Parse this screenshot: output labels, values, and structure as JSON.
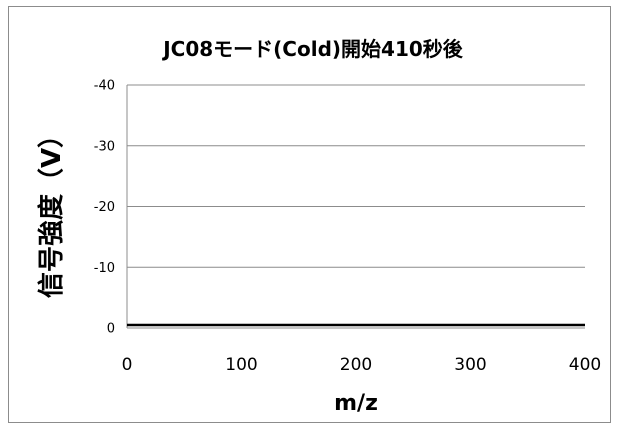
{
  "chart_data": {
    "type": "line",
    "title": "JC08モード(Cold)開始410秒後",
    "xlabel": "m/z",
    "ylabel": "信号強度（V）",
    "xlim": [
      0,
      400
    ],
    "ylim": [
      0,
      -40
    ],
    "y_axis_reversed": true,
    "x_ticks": [
      "0",
      "100",
      "200",
      "300",
      "400"
    ],
    "y_ticks": [
      "0",
      "-10",
      "-20",
      "-30",
      "-40"
    ],
    "grid": "horizontal",
    "legend": "none",
    "series": [
      {
        "x": [
          0,
          400
        ],
        "y": [
          0,
          0
        ]
      }
    ],
    "colors": {
      "line": "#000000",
      "grid": "#8c8c8c",
      "axis": "#8c8c8c"
    }
  }
}
